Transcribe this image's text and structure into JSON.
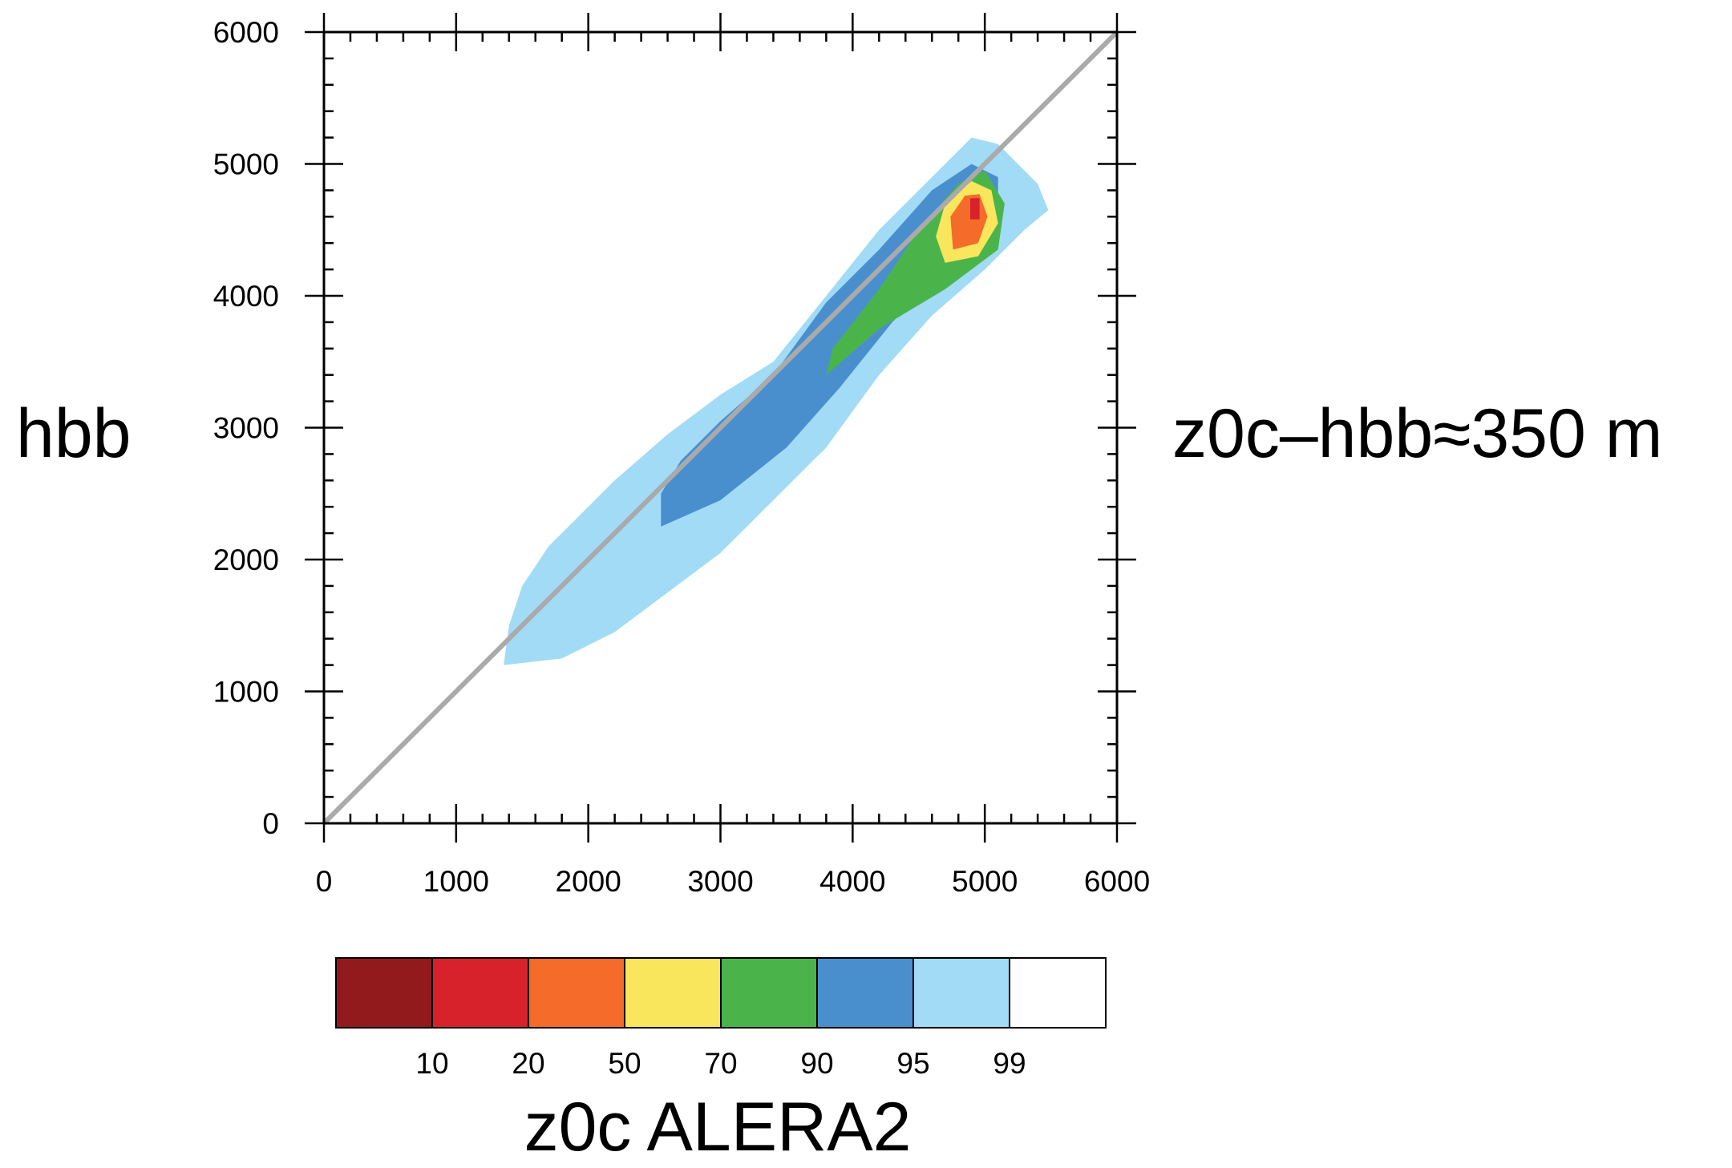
{
  "chart_data": {
    "type": "heatmap",
    "title": "",
    "xlabel": "z0c ALERA2",
    "ylabel": "hbb",
    "annotation": "z0c–hbb≈350 m",
    "xlim": [
      0,
      6000
    ],
    "ylim": [
      0,
      6000
    ],
    "xticks": [
      0,
      1000,
      2000,
      3000,
      4000,
      5000,
      6000
    ],
    "yticks": [
      0,
      1000,
      2000,
      3000,
      4000,
      5000,
      6000
    ],
    "reference_line": {
      "x": [
        0,
        6000
      ],
      "y": [
        0,
        6000
      ],
      "color": "#aaaaaa"
    },
    "colorbar": {
      "labels": [
        "10",
        "20",
        "50",
        "70",
        "90",
        "95",
        "99"
      ],
      "colors": [
        "#921a1d",
        "#d7222c",
        "#f46b2a",
        "#f9e65c",
        "#4ab44a",
        "#4a8fcd",
        "#a1dbf6",
        "#ffffff"
      ]
    },
    "contours": [
      {
        "level": "99",
        "color": "#a1dbf6",
        "points": [
          [
            1360,
            1200
          ],
          [
            1800,
            1250
          ],
          [
            2200,
            1450
          ],
          [
            2600,
            1750
          ],
          [
            3000,
            2050
          ],
          [
            3400,
            2450
          ],
          [
            3800,
            2850
          ],
          [
            4200,
            3400
          ],
          [
            4600,
            3850
          ],
          [
            5000,
            4200
          ],
          [
            5300,
            4500
          ],
          [
            5480,
            4650
          ],
          [
            5400,
            4850
          ],
          [
            5100,
            5150
          ],
          [
            4900,
            5200
          ],
          [
            4600,
            4900
          ],
          [
            4200,
            4500
          ],
          [
            3800,
            4000
          ],
          [
            3400,
            3500
          ],
          [
            3000,
            3250
          ],
          [
            2600,
            2950
          ],
          [
            2200,
            2600
          ],
          [
            1900,
            2300
          ],
          [
            1700,
            2100
          ],
          [
            1500,
            1800
          ],
          [
            1400,
            1500
          ]
        ]
      },
      {
        "level": "95",
        "color": "#4a8fcd",
        "points": [
          [
            2550,
            2250
          ],
          [
            3000,
            2450
          ],
          [
            3500,
            2850
          ],
          [
            3900,
            3300
          ],
          [
            4300,
            3800
          ],
          [
            4700,
            4200
          ],
          [
            5100,
            4500
          ],
          [
            5100,
            4900
          ],
          [
            4900,
            5000
          ],
          [
            4600,
            4800
          ],
          [
            4200,
            4350
          ],
          [
            3800,
            3950
          ],
          [
            3400,
            3400
          ],
          [
            3000,
            3050
          ],
          [
            2700,
            2750
          ],
          [
            2550,
            2500
          ]
        ]
      },
      {
        "level": "90",
        "color": "#4ab44a",
        "points": [
          [
            3800,
            3400
          ],
          [
            4200,
            3750
          ],
          [
            4700,
            4050
          ],
          [
            5100,
            4350
          ],
          [
            5150,
            4700
          ],
          [
            5000,
            4950
          ],
          [
            4800,
            4850
          ],
          [
            4500,
            4500
          ],
          [
            4200,
            4050
          ],
          [
            3850,
            3600
          ]
        ]
      },
      {
        "level": "70",
        "color": "#f9e65c",
        "points": [
          [
            4700,
            4250
          ],
          [
            4950,
            4300
          ],
          [
            5100,
            4550
          ],
          [
            5050,
            4800
          ],
          [
            4900,
            4870
          ],
          [
            4700,
            4700
          ],
          [
            4630,
            4450
          ]
        ]
      },
      {
        "level": "50",
        "color": "#f46b2a",
        "points": [
          [
            4760,
            4350
          ],
          [
            4950,
            4400
          ],
          [
            5020,
            4600
          ],
          [
            4960,
            4770
          ],
          [
            4850,
            4760
          ],
          [
            4740,
            4600
          ]
        ]
      },
      {
        "level": "20",
        "color": "#d7222c",
        "points": [
          [
            4890,
            4580
          ],
          [
            4960,
            4580
          ],
          [
            4960,
            4740
          ],
          [
            4890,
            4740
          ]
        ]
      }
    ]
  }
}
